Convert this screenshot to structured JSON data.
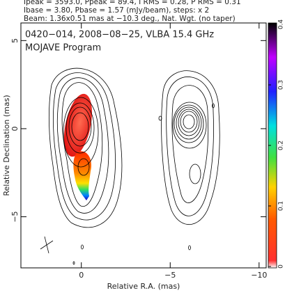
{
  "chart_data": {
    "type": "image",
    "header": [
      "Ipeak = 3593.0, Ppeak = 89.4, I RMS = 0.28, P RMS = 0.31",
      "Ibase = 3.80, Pbase = 1.57 (mJy/beam), steps: x 2",
      "Beam: 1.36x0.51 mas at −10.3 deg., Nat. Wgt. (no taper)"
    ],
    "title": "0420−014, 2008−08−25, VLBA 15.4 GHz",
    "subtitle": "MOJAVE Program",
    "x_label": "Relative R.A. (mas)",
    "y_label": "Relative Declination (mas)",
    "xlim": [
      3.4,
      -10.4
    ],
    "xticks": [
      0,
      {
        "value": -5,
        "label": "−5"
      },
      {
        "value": -10,
        "label": "−10"
      }
    ],
    "ylim": [
      -7.9,
      6
    ],
    "yticks": [
      {
        "value": -5,
        "label": "−5"
      },
      0,
      5
    ],
    "colorbar_lim": [
      0,
      0.4
    ],
    "colorbar_ticks": [
      0,
      0.1,
      0.2,
      0.3,
      0.4
    ]
  }
}
